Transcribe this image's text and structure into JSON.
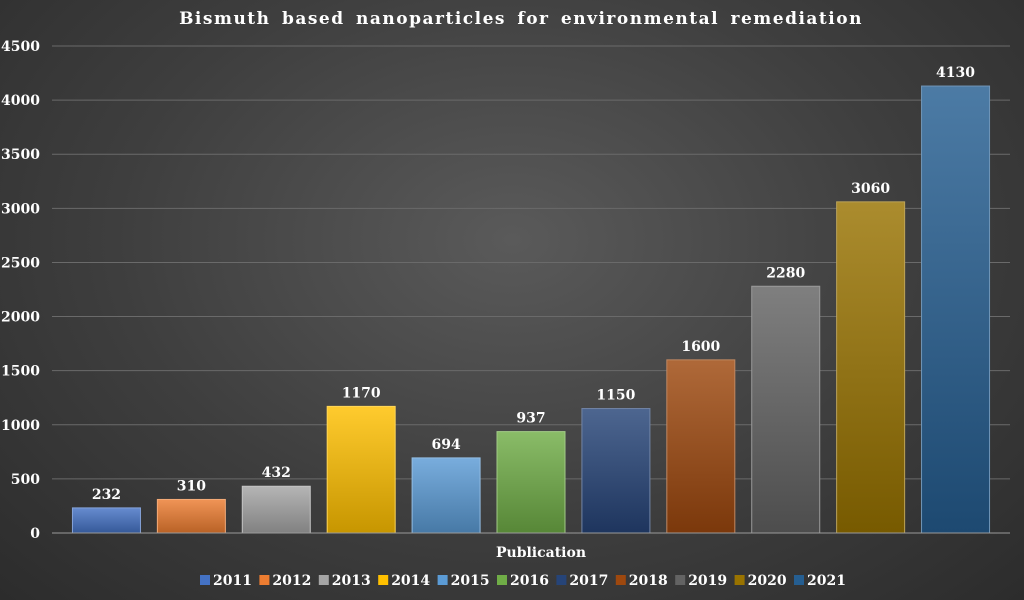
{
  "chart_data": {
    "type": "bar",
    "title": "Bismuth based nanoparticles for environmental remediation",
    "xlabel": "Publication",
    "ylabel": "",
    "ylim": [
      0,
      4500
    ],
    "yticks": [
      0,
      500,
      1000,
      1500,
      2000,
      2500,
      3000,
      3500,
      4000,
      4500
    ],
    "grid": true,
    "legend_position": "bottom",
    "categories": [
      "2011",
      "2012",
      "2013",
      "2014",
      "2015",
      "2016",
      "2017",
      "2018",
      "2019",
      "2020",
      "2021"
    ],
    "values": [
      232,
      310,
      432,
      1170,
      694,
      937,
      1150,
      1600,
      2280,
      3060,
      4130
    ],
    "colors": [
      "#4472c4",
      "#ed7d31",
      "#a5a5a5",
      "#ffc000",
      "#5b9bd5",
      "#70ad47",
      "#264478",
      "#9e480e",
      "#636363",
      "#997300",
      "#255e91"
    ]
  }
}
